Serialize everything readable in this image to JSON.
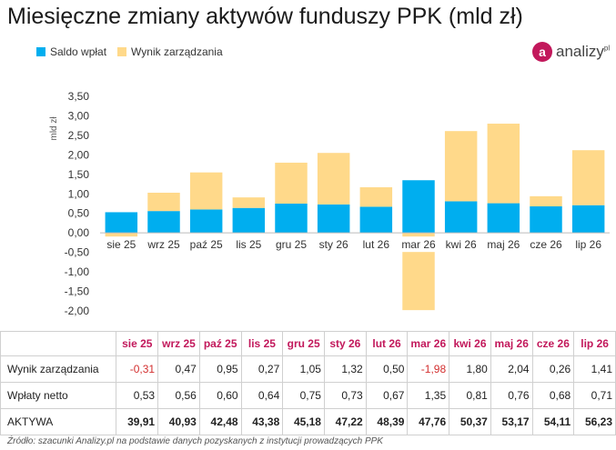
{
  "title": "Miesięczne zmiany aktywów funduszy PPK (mld zł)",
  "logo": {
    "mark": "a",
    "text": "analizy",
    "superscript": "pl"
  },
  "source": "Źródło: szacunki Analizy.pl na podstawie danych pozyskanych z instytucji prowadzących PPK",
  "colors": {
    "saldo": "#00aeef",
    "wynik": "#ffd98a",
    "accent": "#c2185b",
    "negative": "#d32f2f"
  },
  "chart_data": {
    "type": "bar",
    "stacked": true,
    "categories": [
      "sie 25",
      "wrz 25",
      "paź 25",
      "lis 25",
      "gru 25",
      "sty 26",
      "lut 26",
      "mar 26",
      "kwi 26",
      "maj 26",
      "cze 26",
      "lip 26"
    ],
    "series": [
      {
        "name": "Saldo wpłat",
        "values": [
          0.53,
          0.56,
          0.6,
          0.64,
          0.75,
          0.73,
          0.67,
          1.35,
          0.81,
          0.76,
          0.68,
          0.71
        ]
      },
      {
        "name": "Wynik zarządzania",
        "values": [
          -0.31,
          0.47,
          0.95,
          0.27,
          1.05,
          1.32,
          0.5,
          -1.98,
          1.8,
          2.04,
          0.26,
          1.41
        ]
      }
    ],
    "ylabel": "mld zł",
    "ylim": [
      -2.0,
      3.5
    ],
    "yticks": [
      "-2,00",
      "-1,50",
      "-1,00",
      "-0,50",
      "0,00",
      "0,50",
      "1,00",
      "1,50",
      "2,00",
      "2,50",
      "3,00",
      "3,50"
    ],
    "grid": false,
    "legend": "top-left"
  },
  "table": {
    "months": [
      "sie 25",
      "wrz 25",
      "paź 25",
      "lis 25",
      "gru 25",
      "sty 26",
      "lut 26",
      "mar 26",
      "kwi 26",
      "maj 26",
      "cze 26",
      "lip 26"
    ],
    "rows": [
      {
        "label": "Wynik zarządzania",
        "values": [
          "-0,31",
          "0,47",
          "0,95",
          "0,27",
          "1,05",
          "1,32",
          "0,50",
          "-1,98",
          "1,80",
          "2,04",
          "0,26",
          "1,41"
        ]
      },
      {
        "label": "Wpłaty netto",
        "values": [
          "0,53",
          "0,56",
          "0,60",
          "0,64",
          "0,75",
          "0,73",
          "0,67",
          "1,35",
          "0,81",
          "0,76",
          "0,68",
          "0,71"
        ]
      },
      {
        "label": "AKTYWA",
        "values": [
          "39,91",
          "40,93",
          "42,48",
          "43,38",
          "45,18",
          "47,22",
          "48,39",
          "47,76",
          "50,37",
          "53,17",
          "54,11",
          "56,23"
        ]
      }
    ]
  }
}
